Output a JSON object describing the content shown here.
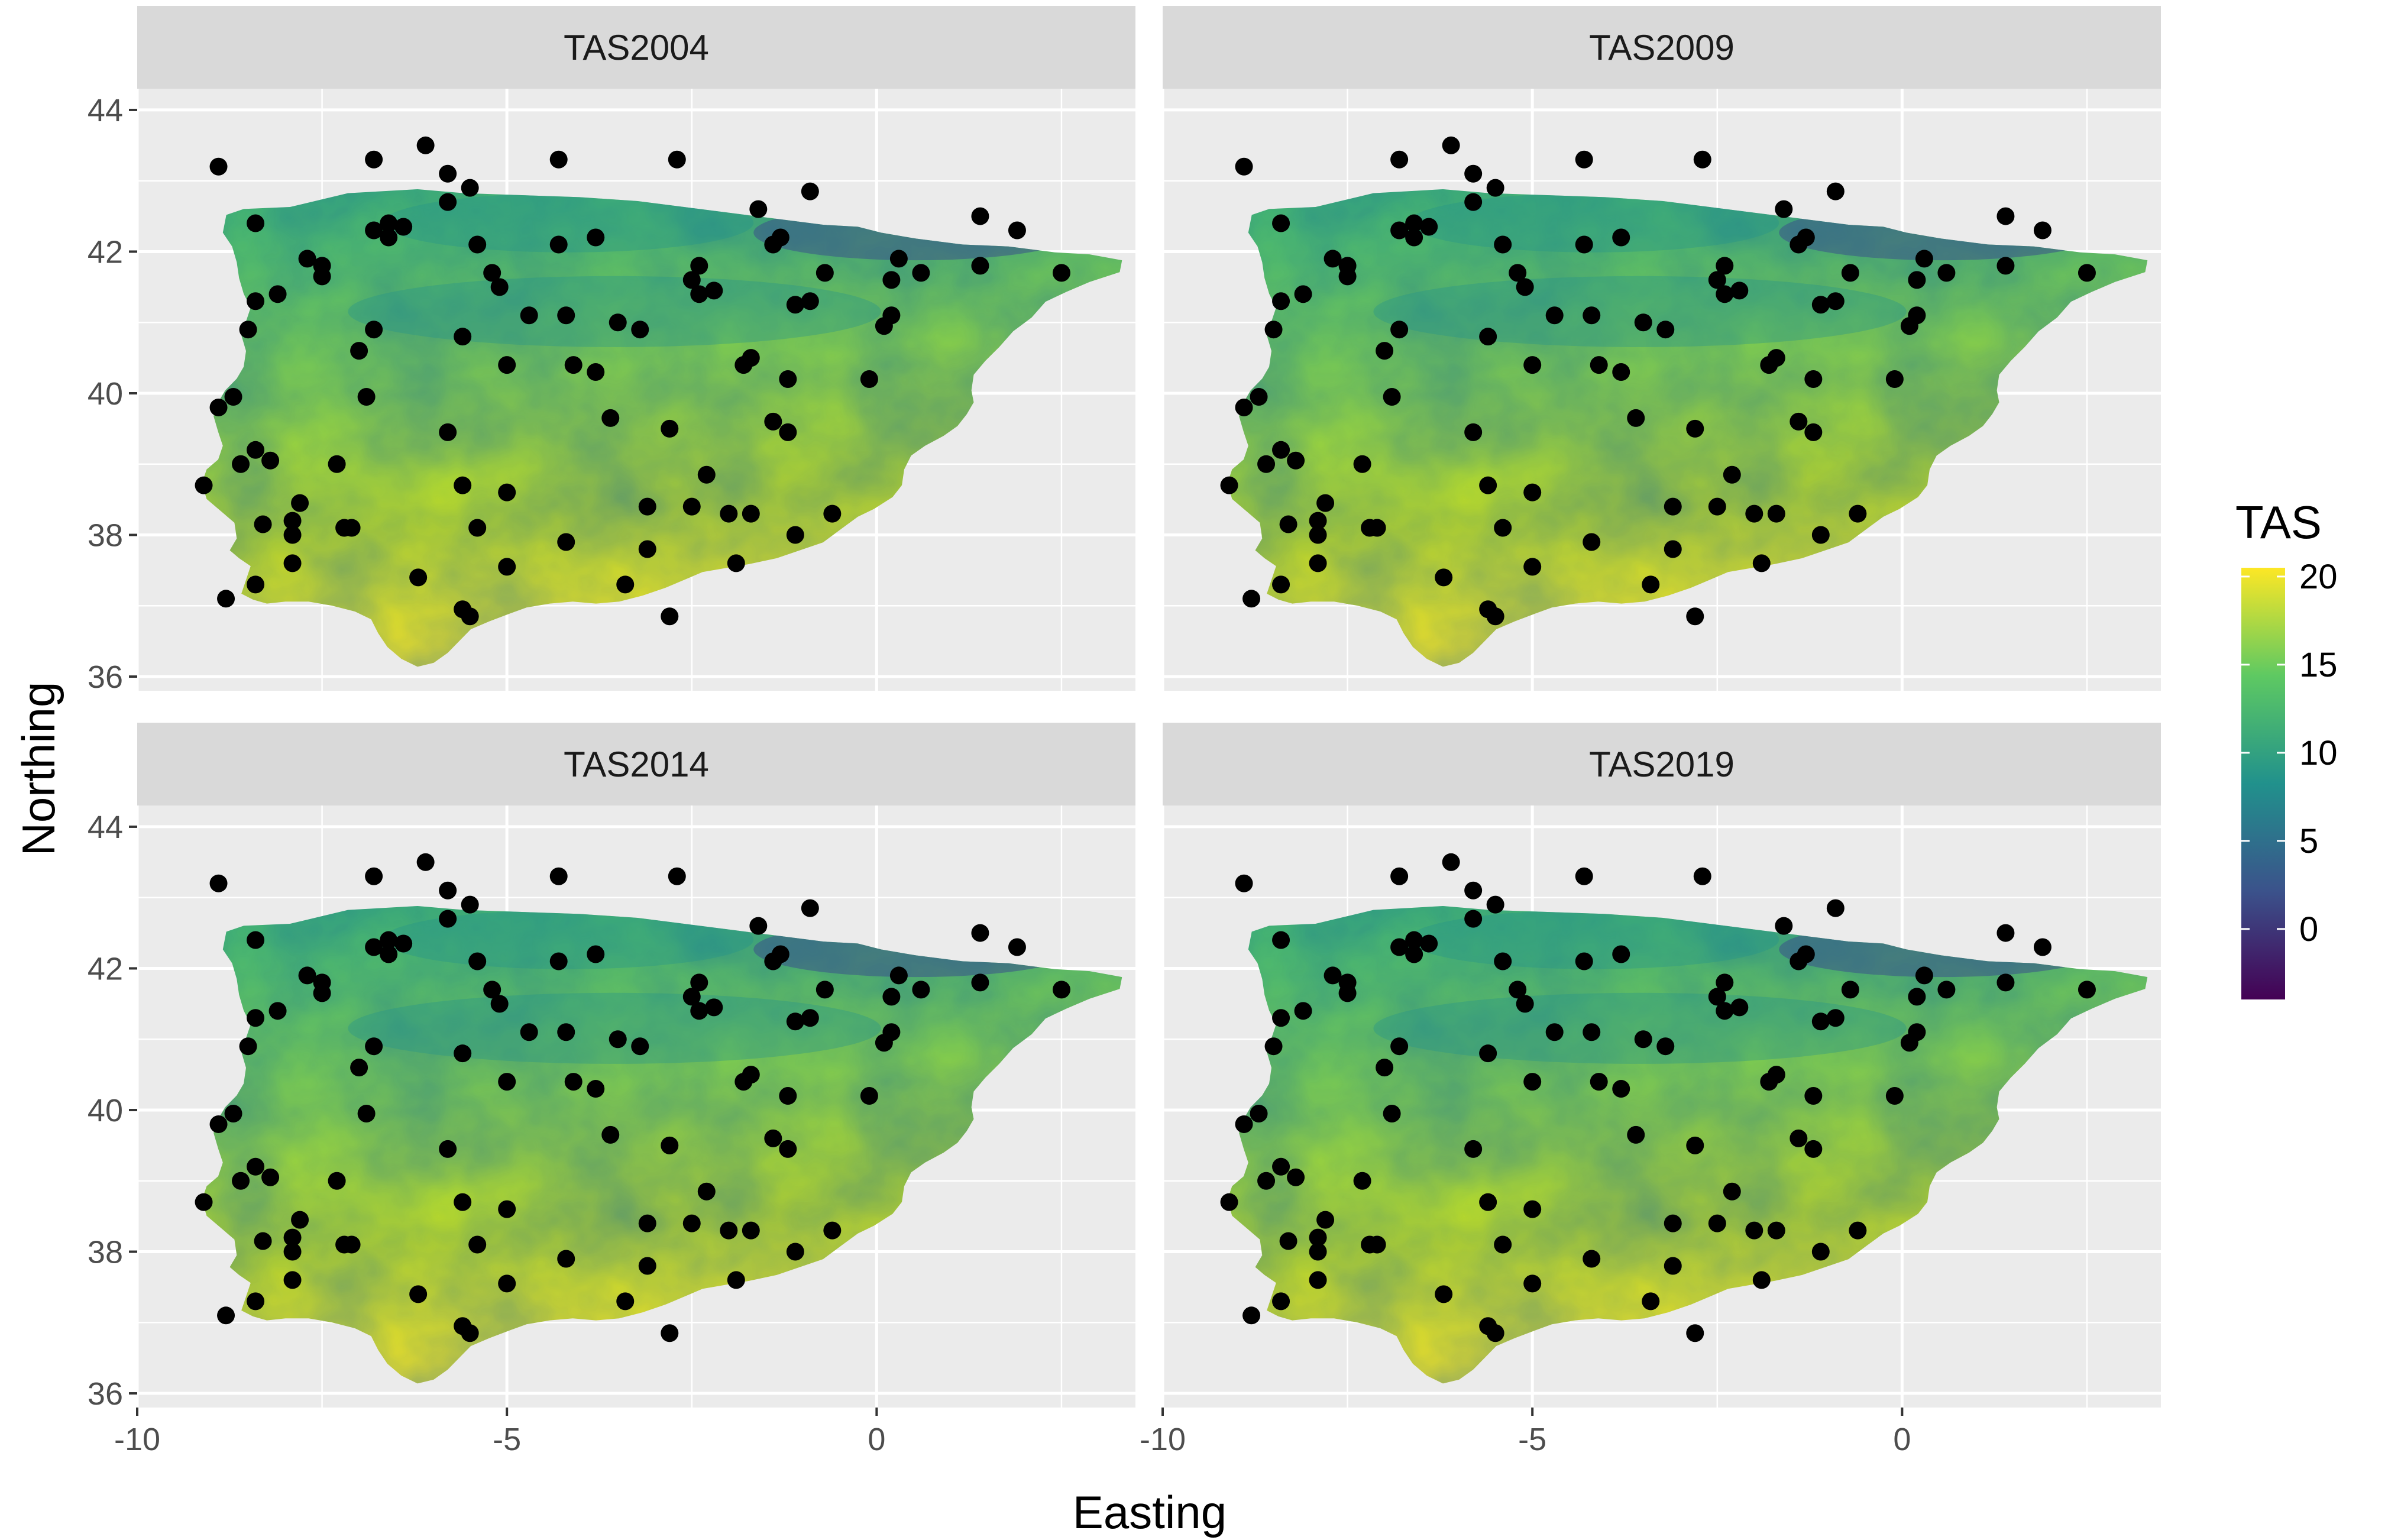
{
  "figure": {
    "xlabel": "Easting",
    "ylabel": "Northing",
    "colors": {
      "panel_background": "#EBEBEB",
      "grid": "#FFFFFF",
      "strip_background": "#D9D9D9",
      "point": "#000000",
      "viridis": [
        "#440154",
        "#3B528B",
        "#21918C",
        "#5EC962",
        "#FDE725"
      ]
    }
  },
  "legend": {
    "title": "TAS",
    "labels": [
      "20",
      "15",
      "10",
      "5",
      "0"
    ]
  },
  "chart_data": {
    "type": "scatter",
    "facets": [
      "TAS2004",
      "TAS2009",
      "TAS2014",
      "TAS2019"
    ],
    "xlim": [
      -10,
      3.5
    ],
    "ylim": [
      35.8,
      44.3
    ],
    "x_ticks": [
      -10,
      -5,
      0
    ],
    "x_tick_labels": [
      "-10",
      "-5",
      "0"
    ],
    "y_ticks": [
      36,
      38,
      40,
      42,
      44
    ],
    "y_tick_labels": [
      "36",
      "38",
      "40",
      "42",
      "44"
    ],
    "grid": true,
    "legend_position": "right",
    "color_scale": {
      "name": "TAS",
      "min": -4,
      "max": 20.5,
      "ticks": [
        0,
        5,
        10,
        15,
        20
      ]
    },
    "stations": [
      {
        "x": -8.9,
        "y": 43.2
      },
      {
        "x": -6.8,
        "y": 43.3
      },
      {
        "x": -6.1,
        "y": 43.5
      },
      {
        "x": -4.3,
        "y": 43.3
      },
      {
        "x": -2.7,
        "y": 43.3
      },
      {
        "x": -5.8,
        "y": 43.1
      },
      {
        "x": -5.5,
        "y": 42.9
      },
      {
        "x": -5.8,
        "y": 42.7
      },
      {
        "x": -8.4,
        "y": 42.4
      },
      {
        "x": -6.8,
        "y": 42.3
      },
      {
        "x": -6.6,
        "y": 42.4
      },
      {
        "x": -6.4,
        "y": 42.35
      },
      {
        "x": -6.6,
        "y": 42.2
      },
      {
        "x": -1.6,
        "y": 42.6
      },
      {
        "x": -0.9,
        "y": 42.85
      },
      {
        "x": 1.4,
        "y": 42.5
      },
      {
        "x": 1.9,
        "y": 42.3
      },
      {
        "x": -7.7,
        "y": 41.9
      },
      {
        "x": -7.5,
        "y": 41.8
      },
      {
        "x": -7.5,
        "y": 41.65
      },
      {
        "x": -8.1,
        "y": 41.4
      },
      {
        "x": -8.4,
        "y": 41.3
      },
      {
        "x": -5.4,
        "y": 42.1
      },
      {
        "x": -4.3,
        "y": 42.1
      },
      {
        "x": -3.8,
        "y": 42.2
      },
      {
        "x": -5.2,
        "y": 41.7
      },
      {
        "x": -5.1,
        "y": 41.5
      },
      {
        "x": -2.4,
        "y": 41.8
      },
      {
        "x": -2.5,
        "y": 41.6
      },
      {
        "x": -2.4,
        "y": 41.4
      },
      {
        "x": -2.2,
        "y": 41.45
      },
      {
        "x": -1.4,
        "y": 42.1
      },
      {
        "x": -1.3,
        "y": 42.2
      },
      {
        "x": -0.7,
        "y": 41.7
      },
      {
        "x": 0.3,
        "y": 41.9
      },
      {
        "x": 0.6,
        "y": 41.7
      },
      {
        "x": 1.4,
        "y": 41.8
      },
      {
        "x": 2.5,
        "y": 41.7
      },
      {
        "x": 0.2,
        "y": 41.6
      },
      {
        "x": -1.1,
        "y": 41.25
      },
      {
        "x": -0.9,
        "y": 41.3
      },
      {
        "x": -8.5,
        "y": 40.9
      },
      {
        "x": -6.8,
        "y": 40.9
      },
      {
        "x": -7.0,
        "y": 40.6
      },
      {
        "x": -5.6,
        "y": 40.8
      },
      {
        "x": -4.7,
        "y": 41.1
      },
      {
        "x": -4.2,
        "y": 41.1
      },
      {
        "x": -3.5,
        "y": 41.0
      },
      {
        "x": -3.2,
        "y": 40.9
      },
      {
        "x": 0.2,
        "y": 41.1
      },
      {
        "x": 0.1,
        "y": 40.95
      },
      {
        "x": -5.0,
        "y": 40.4
      },
      {
        "x": -4.1,
        "y": 40.4
      },
      {
        "x": -3.8,
        "y": 40.3
      },
      {
        "x": -1.7,
        "y": 40.5
      },
      {
        "x": -1.8,
        "y": 40.4
      },
      {
        "x": -1.2,
        "y": 40.2
      },
      {
        "x": -0.1,
        "y": 40.2
      },
      {
        "x": -8.9,
        "y": 39.8
      },
      {
        "x": -8.7,
        "y": 39.95
      },
      {
        "x": -6.9,
        "y": 39.95
      },
      {
        "x": -5.8,
        "y": 39.45
      },
      {
        "x": -3.6,
        "y": 39.65
      },
      {
        "x": -2.8,
        "y": 39.5
      },
      {
        "x": -1.4,
        "y": 39.6
      },
      {
        "x": -1.2,
        "y": 39.45
      },
      {
        "x": -9.1,
        "y": 38.7
      },
      {
        "x": -8.6,
        "y": 39.0
      },
      {
        "x": -8.4,
        "y": 39.2
      },
      {
        "x": -8.2,
        "y": 39.05
      },
      {
        "x": -7.3,
        "y": 39.0
      },
      {
        "x": -5.6,
        "y": 38.7
      },
      {
        "x": -5.0,
        "y": 38.6
      },
      {
        "x": -2.3,
        "y": 38.85
      },
      {
        "x": -7.8,
        "y": 38.45
      },
      {
        "x": -8.3,
        "y": 38.15
      },
      {
        "x": -7.9,
        "y": 38.2
      },
      {
        "x": -7.9,
        "y": 38.0
      },
      {
        "x": -7.2,
        "y": 38.1
      },
      {
        "x": -7.1,
        "y": 38.1
      },
      {
        "x": -5.4,
        "y": 38.1
      },
      {
        "x": -3.1,
        "y": 38.4
      },
      {
        "x": -2.5,
        "y": 38.4
      },
      {
        "x": -2.0,
        "y": 38.3
      },
      {
        "x": -1.7,
        "y": 38.3
      },
      {
        "x": -0.6,
        "y": 38.3
      },
      {
        "x": -1.1,
        "y": 38.0
      },
      {
        "x": -4.2,
        "y": 37.9
      },
      {
        "x": -3.1,
        "y": 37.8
      },
      {
        "x": -1.9,
        "y": 37.6
      },
      {
        "x": -7.9,
        "y": 37.6
      },
      {
        "x": -5.0,
        "y": 37.55
      },
      {
        "x": -8.4,
        "y": 37.3
      },
      {
        "x": -6.2,
        "y": 37.4
      },
      {
        "x": -3.4,
        "y": 37.3
      },
      {
        "x": -8.8,
        "y": 37.1
      },
      {
        "x": -5.6,
        "y": 36.95
      },
      {
        "x": -5.5,
        "y": 36.85
      },
      {
        "x": -2.8,
        "y": 36.85
      }
    ]
  }
}
